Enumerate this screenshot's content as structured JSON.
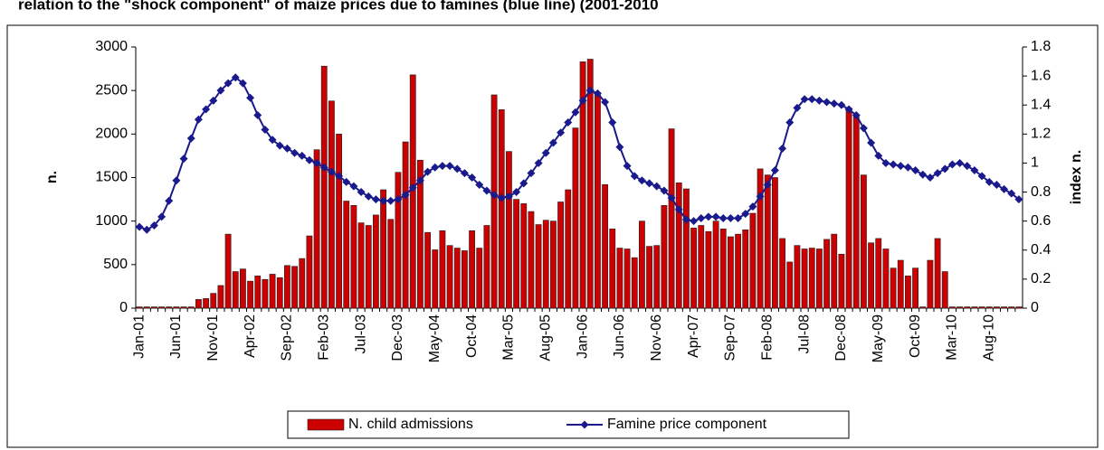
{
  "chart_data": {
    "type": "bar-line",
    "title": "relation to the \"shock component\" of maize prices due to famines (blue line) (2001-2010",
    "y_label": "n.",
    "y2_label": "index n.",
    "categories": [
      "Jan-01",
      null,
      null,
      null,
      null,
      "Jun-01",
      null,
      null,
      null,
      null,
      "Nov-01",
      null,
      null,
      null,
      null,
      "Apr-02",
      null,
      null,
      null,
      null,
      "Sep-02",
      null,
      null,
      null,
      null,
      "Feb-03",
      null,
      null,
      null,
      null,
      "Jul-03",
      null,
      null,
      null,
      null,
      "Dec-03",
      null,
      null,
      null,
      null,
      "May-04",
      null,
      null,
      null,
      null,
      "Oct-04",
      null,
      null,
      null,
      null,
      "Mar-05",
      null,
      null,
      null,
      null,
      "Aug-05",
      null,
      null,
      null,
      null,
      "Jan-06",
      null,
      null,
      null,
      null,
      "Jun-06",
      null,
      null,
      null,
      null,
      "Nov-06",
      null,
      null,
      null,
      null,
      "Apr-07",
      null,
      null,
      null,
      null,
      "Sep-07",
      null,
      null,
      null,
      null,
      "Feb-08",
      null,
      null,
      null,
      null,
      "Jul-08",
      null,
      null,
      null,
      null,
      "Dec-08",
      null,
      null,
      null,
      null,
      "May-09",
      null,
      null,
      null,
      null,
      "Oct-09",
      null,
      null,
      null,
      null,
      "Mar-10",
      null,
      null,
      null,
      null,
      "Aug-10",
      null,
      null,
      null,
      null
    ],
    "series": [
      {
        "name": "N. child admissions",
        "type": "bar",
        "color": "#cc0000",
        "values": [
          15,
          15,
          15,
          15,
          15,
          15,
          15,
          15,
          100,
          110,
          170,
          260,
          850,
          420,
          450,
          310,
          370,
          330,
          390,
          350,
          490,
          480,
          570,
          830,
          1820,
          2780,
          2380,
          2000,
          1230,
          1180,
          980,
          950,
          1070,
          1360,
          1020,
          1560,
          1910,
          2680,
          1700,
          870,
          670,
          890,
          720,
          690,
          660,
          890,
          690,
          950,
          2450,
          2280,
          1800,
          1250,
          1200,
          1110,
          960,
          1010,
          1000,
          1220,
          1360,
          2070,
          2830,
          2860,
          2450,
          1420,
          910,
          690,
          680,
          580,
          1000,
          710,
          720,
          1180,
          2060,
          1440,
          1370,
          920,
          950,
          880,
          1000,
          910,
          820,
          850,
          900,
          1090,
          1600,
          1530,
          1500,
          800,
          530,
          720,
          680,
          690,
          680,
          790,
          850,
          620,
          2300,
          2200,
          1530,
          750,
          800,
          680,
          460,
          550,
          370,
          460,
          15,
          550,
          800,
          420,
          15,
          15,
          15,
          15,
          15,
          15,
          15,
          15,
          15,
          15
        ]
      },
      {
        "name": "Famine price component",
        "type": "line",
        "axis": "y2",
        "color": "#1a1a8c",
        "values": [
          0.56,
          0.54,
          0.57,
          0.63,
          0.74,
          0.88,
          1.03,
          1.17,
          1.3,
          1.37,
          1.43,
          1.5,
          1.55,
          1.59,
          1.55,
          1.45,
          1.33,
          1.23,
          1.16,
          1.12,
          1.1,
          1.07,
          1.05,
          1.02,
          1.0,
          0.97,
          0.94,
          0.91,
          0.87,
          0.84,
          0.8,
          0.77,
          0.75,
          0.74,
          0.74,
          0.75,
          0.78,
          0.83,
          0.88,
          0.94,
          0.97,
          0.98,
          0.98,
          0.96,
          0.93,
          0.9,
          0.85,
          0.81,
          0.78,
          0.76,
          0.77,
          0.8,
          0.86,
          0.93,
          1.0,
          1.07,
          1.14,
          1.21,
          1.28,
          1.35,
          1.43,
          1.5,
          1.48,
          1.42,
          1.28,
          1.11,
          0.98,
          0.91,
          0.88,
          0.86,
          0.84,
          0.81,
          0.76,
          0.68,
          0.61,
          0.6,
          0.62,
          0.63,
          0.63,
          0.62,
          0.62,
          0.62,
          0.65,
          0.7,
          0.77,
          0.85,
          0.95,
          1.1,
          1.28,
          1.38,
          1.44,
          1.44,
          1.43,
          1.42,
          1.41,
          1.4,
          1.37,
          1.33,
          1.24,
          1.14,
          1.05,
          1.0,
          0.99,
          0.98,
          0.97,
          0.95,
          0.92,
          0.9,
          0.93,
          0.96,
          0.99,
          1.0,
          0.98,
          0.95,
          0.91,
          0.87,
          0.85,
          0.82,
          0.79,
          0.75
        ]
      }
    ],
    "ylim": [
      0,
      3000
    ],
    "yticks": [
      0,
      500,
      1000,
      1500,
      2000,
      2500,
      3000
    ],
    "y2lim": [
      0,
      1.8
    ],
    "y2ticks": [
      0,
      0.2,
      0.4,
      0.6,
      0.8,
      1,
      1.2,
      1.4,
      1.6,
      1.8
    ],
    "legend": "bottom"
  }
}
